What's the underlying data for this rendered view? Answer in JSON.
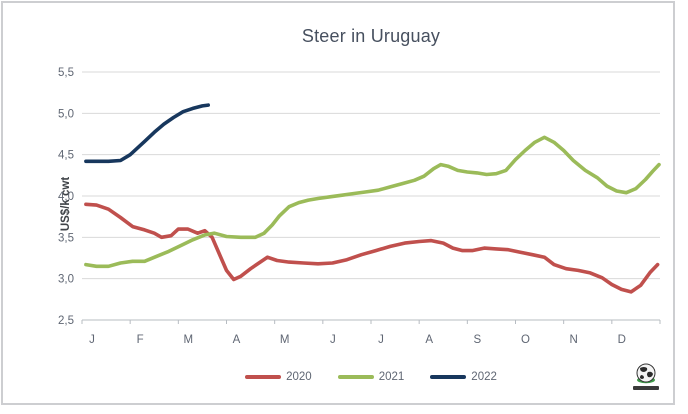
{
  "title": "Steer in Uruguay",
  "y_axis_label": "US$/k cwt",
  "footer": {
    "logo_icon": "globe-icon"
  },
  "colors": {
    "series_2020": "#c0504d",
    "series_2021": "#9bbb59",
    "series_2022": "#17375d",
    "gridline": "#d9d9d9",
    "axis_line": "#b7bcc2",
    "tick_text": "#5f6673",
    "title_text": "#47505f",
    "frame_border": "#cdced1"
  },
  "chart_data": {
    "type": "line",
    "title": "Steer in Uruguay",
    "xlabel": "",
    "ylabel": "US$/k cwt",
    "ylim": [
      2.5,
      5.5
    ],
    "ytick_values": [
      2.5,
      3.0,
      3.5,
      4.0,
      4.5,
      5.0,
      5.5
    ],
    "ytick_labels": [
      "2,5",
      "3,0",
      "3,5",
      "4,0",
      "4,5",
      "5,0",
      "5,5"
    ],
    "x_months": [
      "J",
      "F",
      "M",
      "A",
      "M",
      "J",
      "J",
      "A",
      "S",
      "O",
      "N",
      "D"
    ],
    "x_unit": "months (0-12, weekly points)",
    "grid": "horizontal",
    "legend_position": "bottom",
    "decimal_separator": ",",
    "series": [
      {
        "name": "2020",
        "color": "#c0504d",
        "points": [
          [
            0.08,
            3.9
          ],
          [
            0.3,
            3.89
          ],
          [
            0.55,
            3.84
          ],
          [
            0.8,
            3.74
          ],
          [
            1.05,
            3.63
          ],
          [
            1.3,
            3.59
          ],
          [
            1.5,
            3.55
          ],
          [
            1.65,
            3.5
          ],
          [
            1.85,
            3.52
          ],
          [
            2.0,
            3.6
          ],
          [
            2.2,
            3.6
          ],
          [
            2.4,
            3.55
          ],
          [
            2.55,
            3.58
          ],
          [
            2.7,
            3.5
          ],
          [
            2.85,
            3.3
          ],
          [
            3.0,
            3.1
          ],
          [
            3.15,
            2.99
          ],
          [
            3.3,
            3.03
          ],
          [
            3.5,
            3.12
          ],
          [
            3.7,
            3.2
          ],
          [
            3.85,
            3.26
          ],
          [
            4.05,
            3.22
          ],
          [
            4.3,
            3.2
          ],
          [
            4.6,
            3.19
          ],
          [
            4.9,
            3.18
          ],
          [
            5.2,
            3.19
          ],
          [
            5.5,
            3.23
          ],
          [
            5.8,
            3.29
          ],
          [
            6.1,
            3.34
          ],
          [
            6.4,
            3.39
          ],
          [
            6.7,
            3.43
          ],
          [
            7.0,
            3.45
          ],
          [
            7.25,
            3.46
          ],
          [
            7.5,
            3.43
          ],
          [
            7.7,
            3.37
          ],
          [
            7.9,
            3.34
          ],
          [
            8.1,
            3.34
          ],
          [
            8.35,
            3.37
          ],
          [
            8.6,
            3.36
          ],
          [
            8.85,
            3.35
          ],
          [
            9.1,
            3.32
          ],
          [
            9.35,
            3.29
          ],
          [
            9.6,
            3.26
          ],
          [
            9.8,
            3.17
          ],
          [
            10.05,
            3.12
          ],
          [
            10.3,
            3.1
          ],
          [
            10.55,
            3.07
          ],
          [
            10.8,
            3.01
          ],
          [
            11.0,
            2.93
          ],
          [
            11.2,
            2.87
          ],
          [
            11.4,
            2.84
          ],
          [
            11.6,
            2.92
          ],
          [
            11.8,
            3.08
          ],
          [
            11.95,
            3.17
          ]
        ]
      },
      {
        "name": "2021",
        "color": "#9bbb59",
        "points": [
          [
            0.08,
            3.17
          ],
          [
            0.3,
            3.15
          ],
          [
            0.55,
            3.15
          ],
          [
            0.8,
            3.19
          ],
          [
            1.05,
            3.21
          ],
          [
            1.3,
            3.21
          ],
          [
            1.55,
            3.27
          ],
          [
            1.8,
            3.33
          ],
          [
            2.05,
            3.4
          ],
          [
            2.3,
            3.47
          ],
          [
            2.55,
            3.53
          ],
          [
            2.75,
            3.55
          ],
          [
            3.0,
            3.51
          ],
          [
            3.3,
            3.5
          ],
          [
            3.6,
            3.5
          ],
          [
            3.78,
            3.55
          ],
          [
            3.95,
            3.65
          ],
          [
            4.1,
            3.76
          ],
          [
            4.3,
            3.87
          ],
          [
            4.5,
            3.92
          ],
          [
            4.7,
            3.95
          ],
          [
            4.9,
            3.97
          ],
          [
            5.15,
            3.99
          ],
          [
            5.4,
            4.01
          ],
          [
            5.65,
            4.03
          ],
          [
            5.9,
            4.05
          ],
          [
            6.15,
            4.07
          ],
          [
            6.4,
            4.11
          ],
          [
            6.65,
            4.15
          ],
          [
            6.9,
            4.19
          ],
          [
            7.1,
            4.24
          ],
          [
            7.3,
            4.33
          ],
          [
            7.45,
            4.38
          ],
          [
            7.6,
            4.36
          ],
          [
            7.8,
            4.31
          ],
          [
            8.0,
            4.29
          ],
          [
            8.2,
            4.28
          ],
          [
            8.4,
            4.26
          ],
          [
            8.6,
            4.27
          ],
          [
            8.8,
            4.31
          ],
          [
            9.0,
            4.44
          ],
          [
            9.2,
            4.55
          ],
          [
            9.4,
            4.65
          ],
          [
            9.6,
            4.71
          ],
          [
            9.8,
            4.65
          ],
          [
            10.0,
            4.55
          ],
          [
            10.2,
            4.43
          ],
          [
            10.45,
            4.31
          ],
          [
            10.7,
            4.22
          ],
          [
            10.9,
            4.12
          ],
          [
            11.1,
            4.06
          ],
          [
            11.3,
            4.04
          ],
          [
            11.5,
            4.09
          ],
          [
            11.7,
            4.2
          ],
          [
            11.85,
            4.3
          ],
          [
            11.98,
            4.38
          ]
        ]
      },
      {
        "name": "2022",
        "color": "#17375d",
        "points": [
          [
            0.08,
            4.42
          ],
          [
            0.3,
            4.42
          ],
          [
            0.55,
            4.42
          ],
          [
            0.8,
            4.43
          ],
          [
            1.0,
            4.5
          ],
          [
            1.15,
            4.58
          ],
          [
            1.3,
            4.66
          ],
          [
            1.5,
            4.77
          ],
          [
            1.7,
            4.87
          ],
          [
            1.9,
            4.95
          ],
          [
            2.1,
            5.02
          ],
          [
            2.3,
            5.06
          ],
          [
            2.5,
            5.09
          ],
          [
            2.62,
            5.1
          ]
        ]
      }
    ]
  }
}
